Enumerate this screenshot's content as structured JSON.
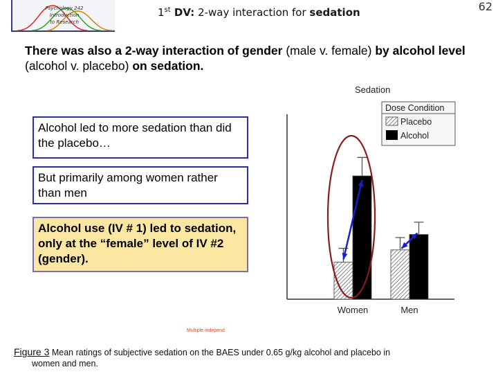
{
  "logo": {
    "lines": [
      "Psychology 242",
      "Introduction",
      "to Research"
    ]
  },
  "title": {
    "ordinal": "1",
    "suffix": "st",
    "dv": " DV:",
    "rest": " 2-way interaction for ",
    "emph": "sedation"
  },
  "page_number": "62",
  "intro": {
    "p1": "There was also a 2-way interaction of gender ",
    "p2": "(male v. female)",
    "p3": " by alcohol level ",
    "p4": "(alcohol v. placebo)",
    "p5": " on sedation."
  },
  "boxes": {
    "b1": "Alcohol led to more sedation than did the placebo…",
    "b2": "But primarily among women rather than men",
    "b3": "Alcohol use (IV # 1) led to sedation, only at the “female” level of IV #2 (gender)."
  },
  "small_note": "Multiple independ",
  "caption": {
    "fig": "Figure 3",
    "text1": " Mean ratings of subjective sedation on the BAES under 0.65 g/kg alcohol and placebo in",
    "text2": "women and men."
  },
  "colors": {
    "box_border": "#2b2fa6",
    "highlight_box": "#fbe6a2",
    "ellipse": "#8b1a1a",
    "arrow": "#1a20c8"
  },
  "chart_data": {
    "type": "bar",
    "ylabel": "Sedation",
    "categories": [
      "Women",
      "Men"
    ],
    "legend": {
      "title": "Dose Condition",
      "placement": "top-right"
    },
    "series": [
      {
        "name": "Placebo",
        "values": [
          1.2,
          1.6
        ],
        "errors": [
          0.45,
          0.4
        ],
        "pattern": "hatched"
      },
      {
        "name": "Alcohol",
        "values": [
          4.0,
          2.1
        ],
        "errors": [
          0.6,
          0.4
        ],
        "pattern": "solid"
      }
    ],
    "ylim": [
      0,
      6
    ],
    "grid": false
  }
}
